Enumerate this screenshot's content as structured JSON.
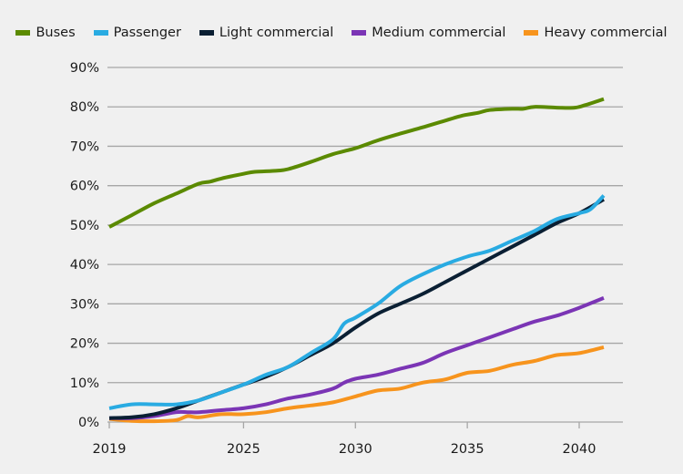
{
  "chart_data": {
    "type": "line",
    "title": "",
    "xlabel": "",
    "ylabel": "",
    "xlim": [
      2019,
      2041.2
    ],
    "ylim": [
      0,
      90
    ],
    "grid": true,
    "legend_position": "top",
    "x_ticks": [
      2019,
      2025,
      2030,
      2035,
      2040
    ],
    "x_tick_labels": [
      "2019",
      "2025",
      "2030",
      "2035",
      "2040"
    ],
    "y_ticks": [
      0,
      10,
      20,
      30,
      40,
      50,
      60,
      70,
      80,
      90
    ],
    "y_tick_labels": [
      "0%",
      "10%",
      "20%",
      "30%",
      "40%",
      "50%",
      "60%",
      "70%",
      "80%",
      "90%"
    ],
    "series": [
      {
        "name": "Buses",
        "color": "#5b8a00",
        "x": [
          2019,
          2020,
          2021,
          2022,
          2023,
          2023.5,
          2024,
          2025,
          2025.5,
          2026.5,
          2027,
          2028,
          2029,
          2030,
          2031,
          2032,
          2033,
          2034,
          2034.8,
          2035.5,
          2036,
          2037,
          2037.5,
          2038,
          2039,
          2039.8,
          2040.3,
          2041.1
        ],
        "values": [
          49.5,
          52.5,
          55.5,
          58,
          60.5,
          61,
          61.8,
          63,
          63.5,
          63.8,
          64.2,
          66,
          68,
          69.5,
          71.5,
          73.2,
          74.8,
          76.5,
          77.8,
          78.5,
          79.2,
          79.5,
          79.5,
          80,
          79.8,
          79.8,
          80.5,
          82
        ]
      },
      {
        "name": "Passenger",
        "color": "#29abe2",
        "x": [
          2019,
          2020,
          2021,
          2022,
          2023,
          2024,
          2025,
          2026,
          2027,
          2028,
          2029,
          2029.5,
          2030,
          2031,
          2032,
          2033,
          2034,
          2035,
          2036,
          2037,
          2038,
          2039,
          2040,
          2040.5,
          2041.1
        ],
        "values": [
          3.5,
          4.5,
          4.5,
          4.5,
          5.5,
          7.5,
          9.5,
          12,
          14,
          17.5,
          21,
          25,
          26.5,
          30,
          34.5,
          37.5,
          40,
          42,
          43.5,
          46,
          48.5,
          51.5,
          53,
          54,
          57.5
        ]
      },
      {
        "name": "Light commercial",
        "color": "#0a1f33",
        "x": [
          2019,
          2020,
          2021,
          2022,
          2023,
          2024,
          2025,
          2026,
          2027,
          2028,
          2029,
          2030,
          2031,
          2032,
          2033,
          2034,
          2035,
          2036,
          2037,
          2038,
          2039,
          2040,
          2041.1
        ],
        "values": [
          1,
          1.2,
          2,
          3.5,
          5.5,
          7.5,
          9.5,
          11.5,
          14,
          17,
          20,
          24,
          27.5,
          30,
          32.5,
          35.5,
          38.5,
          41.5,
          44.5,
          47.5,
          50.5,
          53,
          56.5
        ]
      },
      {
        "name": "Medium commercial",
        "color": "#7b35b5",
        "x": [
          2019,
          2020,
          2021,
          2022,
          2022.5,
          2023,
          2024,
          2025,
          2026,
          2027,
          2028,
          2029,
          2029.5,
          2030,
          2031,
          2032,
          2033,
          2034,
          2035,
          2036,
          2037,
          2038,
          2039,
          2040,
          2041.1
        ],
        "values": [
          1,
          1,
          1.5,
          2.5,
          2.5,
          2.5,
          3,
          3.5,
          4.5,
          6,
          7,
          8.5,
          10,
          11,
          12,
          13.5,
          15,
          17.5,
          19.5,
          21.5,
          23.5,
          25.5,
          27,
          29,
          31.5
        ]
      },
      {
        "name": "Heavy commercial",
        "color": "#f7941d",
        "x": [
          2019,
          2020,
          2021,
          2022,
          2022.5,
          2023,
          2024,
          2025,
          2026,
          2027,
          2028,
          2029,
          2030,
          2031,
          2032,
          2033,
          2034,
          2035,
          2036,
          2037,
          2038,
          2039,
          2040,
          2041.1
        ],
        "values": [
          0.8,
          0.3,
          0.2,
          0.5,
          1.5,
          1.2,
          2,
          2,
          2.5,
          3.5,
          4.2,
          5,
          6.5,
          8,
          8.5,
          10,
          10.8,
          12.5,
          13,
          14.5,
          15.5,
          17,
          17.5,
          19
        ]
      }
    ]
  }
}
